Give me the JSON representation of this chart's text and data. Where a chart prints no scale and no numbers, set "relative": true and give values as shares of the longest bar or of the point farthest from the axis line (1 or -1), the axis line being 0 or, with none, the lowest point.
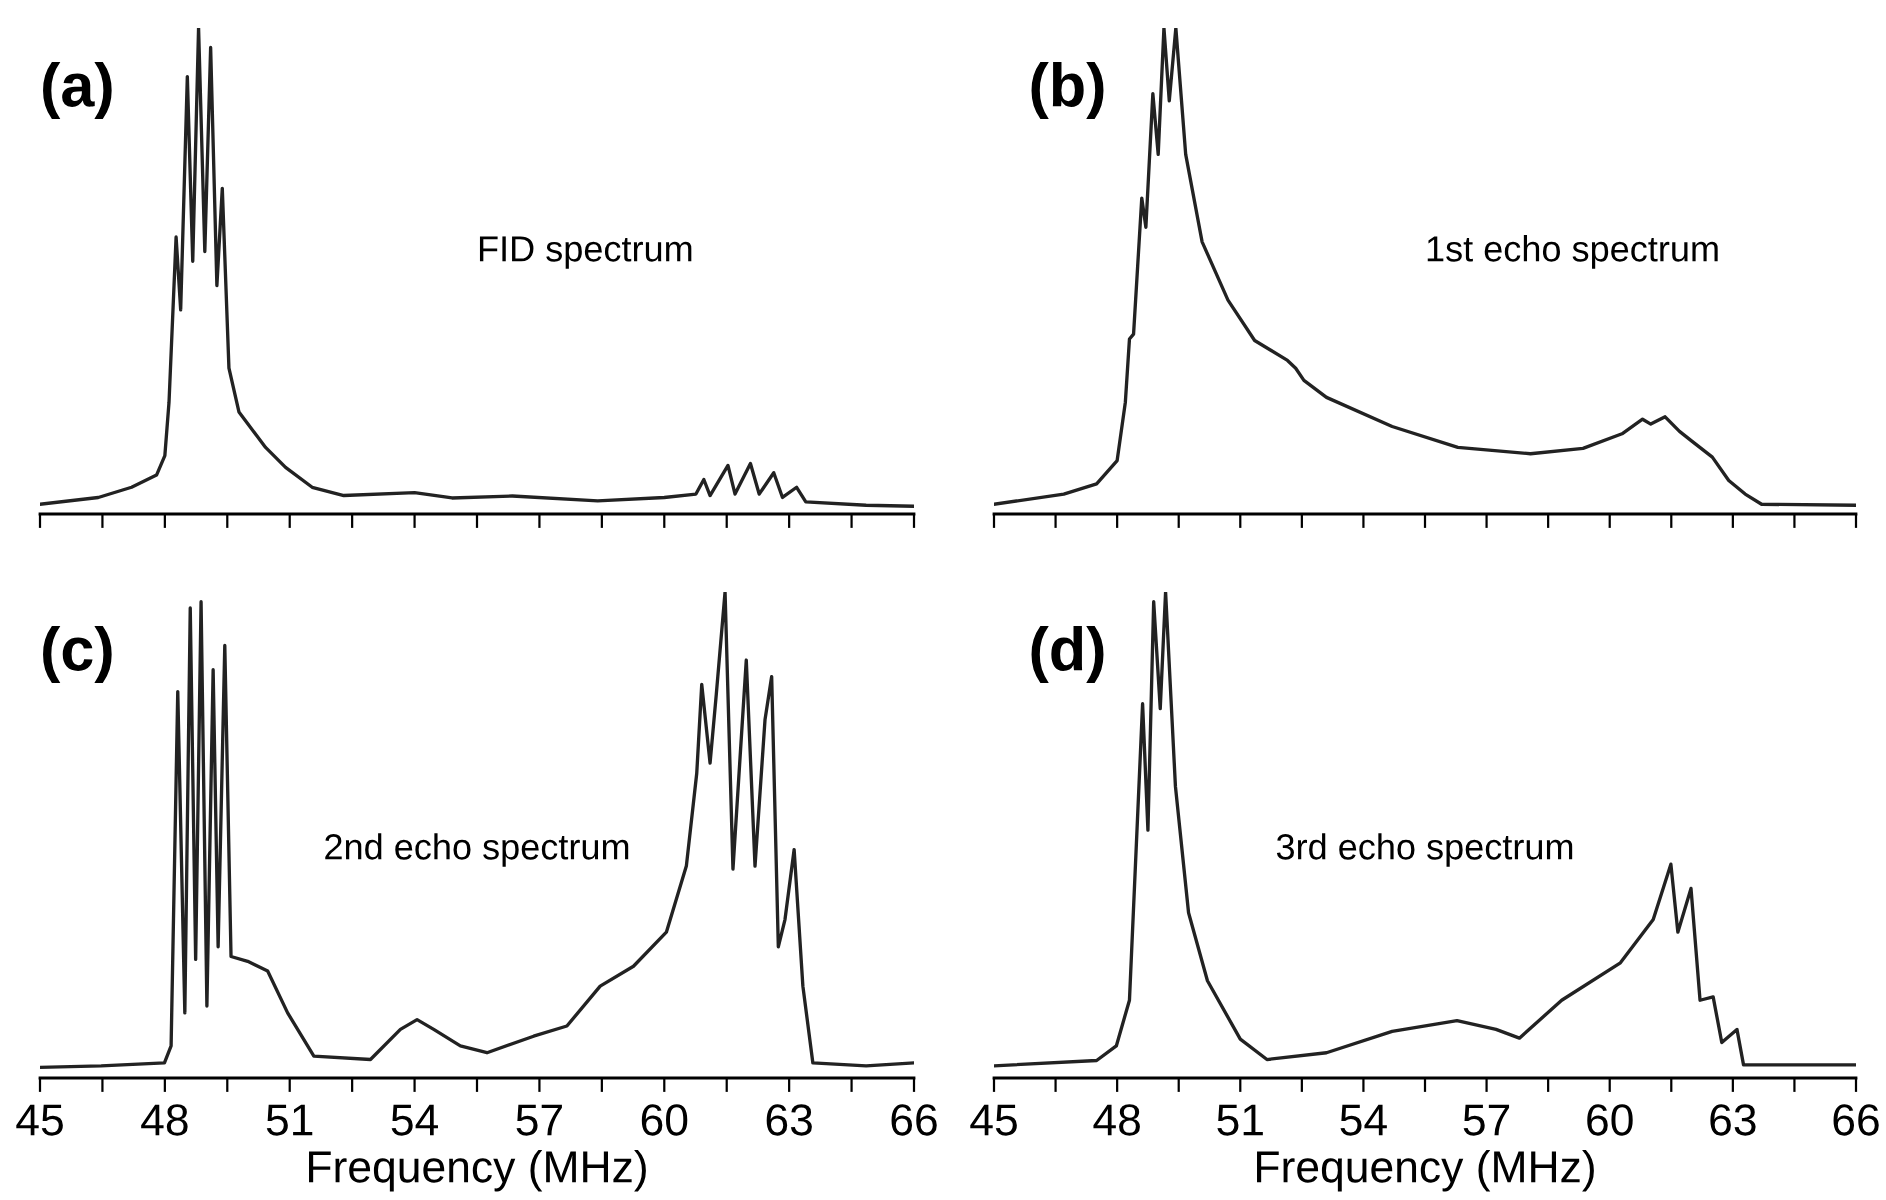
{
  "chart_data": [
    {
      "type": "line",
      "title": "(a)",
      "annotations": [
        "FID spectrum"
      ],
      "relative": true,
      "xlim": [
        45,
        66
      ],
      "tick_labels": false,
      "grid": false,
      "legend": false,
      "xticks": [
        45,
        {
          "value": 46.5,
          "label": null
        },
        48,
        {
          "value": 49.5,
          "label": null
        },
        51,
        {
          "value": 52.5,
          "label": null
        },
        54,
        {
          "value": 55.5,
          "label": null
        },
        57,
        {
          "value": 58.5,
          "label": null
        },
        60,
        {
          "value": 61.5,
          "label": null
        },
        63,
        {
          "value": 64.5,
          "label": null
        },
        66
      ],
      "series": [
        {
          "color": "#222222",
          "x": [
            45,
            46.4,
            47.2,
            47.8,
            48.0,
            48.1,
            48.27,
            48.38,
            48.54,
            48.67,
            48.81,
            48.96,
            49.1,
            49.25,
            49.38,
            49.54,
            49.78,
            50.42,
            50.9,
            51.54,
            52.3,
            54.0,
            54.9,
            56.35,
            58.4,
            60.0,
            60.76,
            60.95,
            61.1,
            61.53,
            61.7,
            62.07,
            62.28,
            62.63,
            62.84,
            63.18,
            63.4,
            64.85,
            66
          ],
          "values": [
            0.02,
            0.034,
            0.055,
            0.08,
            0.12,
            0.23,
            0.57,
            0.42,
            0.9,
            0.52,
            1.0,
            0.54,
            0.96,
            0.47,
            0.67,
            0.3,
            0.21,
            0.137,
            0.096,
            0.055,
            0.038,
            0.044,
            0.033,
            0.037,
            0.027,
            0.034,
            0.041,
            0.071,
            0.038,
            0.1,
            0.041,
            0.104,
            0.041,
            0.085,
            0.034,
            0.055,
            0.025,
            0.018,
            0.016
          ]
        }
      ]
    },
    {
      "type": "line",
      "title": "(b)",
      "annotations": [
        "1st echo spectrum"
      ],
      "relative": true,
      "xlim": [
        45,
        66
      ],
      "tick_labels": false,
      "grid": false,
      "legend": false,
      "xticks": [
        45,
        {
          "value": 46.5,
          "label": null
        },
        48,
        {
          "value": 49.5,
          "label": null
        },
        51,
        {
          "value": 52.5,
          "label": null
        },
        54,
        {
          "value": 55.5,
          "label": null
        },
        57,
        {
          "value": 58.5,
          "label": null
        },
        60,
        {
          "value": 61.5,
          "label": null
        },
        63,
        {
          "value": 64.5,
          "label": null
        },
        66
      ],
      "series": [
        {
          "color": "#222222",
          "x": [
            45,
            46.7,
            47.5,
            48.0,
            48.2,
            48.3,
            48.4,
            48.5,
            48.6,
            48.7,
            48.87,
            49.0,
            49.14,
            49.27,
            49.43,
            49.67,
            50.07,
            50.7,
            51.35,
            52.15,
            52.35,
            52.55,
            53.1,
            54.7,
            56.3,
            58.07,
            59.35,
            60.3,
            60.8,
            61.0,
            61.35,
            61.7,
            62.0,
            62.5,
            62.9,
            63.3,
            63.7,
            66
          ],
          "values": [
            0.02,
            0.041,
            0.062,
            0.11,
            0.23,
            0.36,
            0.37,
            0.51,
            0.65,
            0.59,
            0.865,
            0.74,
            1.0,
            0.85,
            1.0,
            0.74,
            0.56,
            0.44,
            0.357,
            0.316,
            0.3,
            0.275,
            0.24,
            0.18,
            0.137,
            0.124,
            0.135,
            0.165,
            0.195,
            0.185,
            0.2,
            0.17,
            0.15,
            0.117,
            0.069,
            0.041,
            0.02,
            0.018
          ]
        }
      ]
    },
    {
      "type": "line",
      "title": "(c)",
      "annotations": [
        "2nd echo spectrum"
      ],
      "xlabel": "Frequency (MHz)",
      "relative": true,
      "xlim": [
        45,
        66
      ],
      "tick_labels": "x",
      "grid": false,
      "legend": false,
      "xticks": [
        45,
        {
          "value": 46.5,
          "label": null
        },
        48,
        {
          "value": 49.5,
          "label": null
        },
        51,
        {
          "value": 52.5,
          "label": null
        },
        54,
        {
          "value": 55.5,
          "label": null
        },
        57,
        {
          "value": 58.5,
          "label": null
        },
        60,
        {
          "value": 61.5,
          "label": null
        },
        63,
        {
          "value": 64.5,
          "label": null
        },
        66
      ],
      "series": [
        {
          "color": "#222222",
          "x": [
            45,
            46.47,
            47.99,
            48.15,
            48.31,
            48.48,
            48.61,
            48.74,
            48.87,
            49.01,
            49.16,
            49.28,
            49.44,
            49.59,
            49.99,
            50.47,
            50.95,
            51.58,
            52.94,
            53.66,
            54.06,
            54.46,
            55.1,
            55.74,
            56.86,
            57.66,
            58.46,
            59.26,
            60.05,
            60.53,
            60.78,
            60.9,
            61.1,
            61.25,
            61.46,
            61.65,
            61.97,
            62.18,
            62.42,
            62.58,
            62.74,
            62.9,
            63.12,
            63.33,
            63.57,
            64.85,
            66
          ],
          "values": [
            0.022,
            0.025,
            0.031,
            0.066,
            0.795,
            0.134,
            0.967,
            0.244,
            0.98,
            0.148,
            0.84,
            0.27,
            0.89,
            0.25,
            0.24,
            0.22,
            0.134,
            0.045,
            0.038,
            0.1,
            0.12,
            0.1,
            0.066,
            0.052,
            0.086,
            0.107,
            0.189,
            0.23,
            0.3,
            0.436,
            0.627,
            0.81,
            0.648,
            0.79,
            1.0,
            0.43,
            0.86,
            0.436,
            0.737,
            0.826,
            0.27,
            0.326,
            0.47,
            0.189,
            0.031,
            0.025,
            0.031
          ]
        }
      ]
    },
    {
      "type": "line",
      "title": "(d)",
      "annotations": [
        "3rd echo spectrum"
      ],
      "xlabel": "Frequency (MHz)",
      "relative": true,
      "xlim": [
        45,
        66
      ],
      "tick_labels": "x",
      "grid": false,
      "legend": false,
      "xticks": [
        45,
        {
          "value": 46.5,
          "label": null
        },
        48,
        {
          "value": 49.5,
          "label": null
        },
        51,
        {
          "value": 52.5,
          "label": null
        },
        54,
        {
          "value": 55.5,
          "label": null
        },
        57,
        {
          "value": 58.5,
          "label": null
        },
        60,
        {
          "value": 61.5,
          "label": null
        },
        63,
        {
          "value": 64.5,
          "label": null
        },
        66
      ],
      "series": [
        {
          "color": "#222222",
          "x": [
            45,
            47.5,
            47.98,
            48.3,
            48.62,
            48.75,
            48.89,
            49.05,
            49.18,
            49.42,
            49.74,
            50.2,
            51.0,
            51.65,
            53.1,
            54.7,
            56.28,
            57.23,
            57.8,
            58.83,
            60.26,
            61.06,
            61.49,
            61.66,
            61.98,
            62.2,
            62.52,
            62.73,
            63.1,
            63.26,
            64.25,
            66
          ],
          "values": [
            0.025,
            0.036,
            0.066,
            0.16,
            0.77,
            0.51,
            0.98,
            0.76,
            1.0,
            0.6,
            0.34,
            0.2,
            0.08,
            0.038,
            0.052,
            0.096,
            0.118,
            0.1,
            0.082,
            0.16,
            0.237,
            0.326,
            0.44,
            0.3,
            0.39,
            0.16,
            0.167,
            0.073,
            0.1,
            0.027,
            0.027,
            0.027
          ]
        }
      ]
    }
  ]
}
